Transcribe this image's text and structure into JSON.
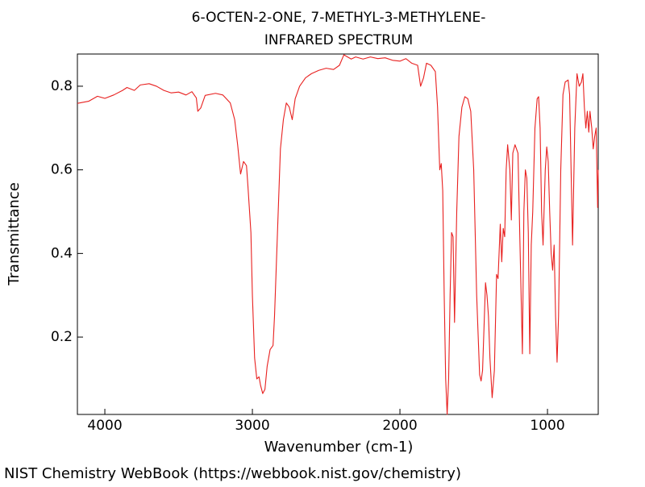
{
  "chart_data": {
    "type": "line",
    "title": "6-OCTEN-2-ONE, 7-METHYL-3-METHYLENE-",
    "subtitle": "INFRARED SPECTRUM",
    "x_label": "Wavenumber (cm-1)",
    "y_label": "Transmittance",
    "source": "NIST Chemistry WebBook (https://webbook.nist.gov/chemistry)",
    "color": "#e8201f",
    "xlim": [
      4186,
      656
    ],
    "ylim": [
      0.015,
      0.877
    ],
    "xticks": [
      4000,
      3000,
      2000,
      1000
    ],
    "yticks": [
      0.2,
      0.4,
      0.6,
      0.8
    ],
    "x": [
      4186,
      4110,
      4050,
      4000,
      3940,
      3880,
      3850,
      3800,
      3760,
      3700,
      3650,
      3600,
      3550,
      3500,
      3450,
      3410,
      3380,
      3370,
      3350,
      3320,
      3250,
      3200,
      3150,
      3120,
      3100,
      3080,
      3060,
      3040,
      3030,
      3010,
      3000,
      2985,
      2970,
      2955,
      2945,
      2930,
      2915,
      2900,
      2880,
      2860,
      2850,
      2830,
      2810,
      2790,
      2770,
      2750,
      2730,
      2710,
      2680,
      2640,
      2600,
      2550,
      2500,
      2450,
      2410,
      2380,
      2330,
      2300,
      2250,
      2200,
      2150,
      2100,
      2050,
      2000,
      1960,
      1920,
      1880,
      1860,
      1840,
      1820,
      1790,
      1760,
      1745,
      1730,
      1720,
      1710,
      1700,
      1690,
      1680,
      1670,
      1660,
      1650,
      1640,
      1630,
      1615,
      1600,
      1580,
      1560,
      1540,
      1520,
      1500,
      1480,
      1460,
      1450,
      1440,
      1420,
      1410,
      1400,
      1390,
      1375,
      1360,
      1345,
      1335,
      1320,
      1310,
      1300,
      1290,
      1280,
      1270,
      1255,
      1245,
      1235,
      1220,
      1200,
      1185,
      1170,
      1160,
      1150,
      1140,
      1130,
      1120,
      1110,
      1100,
      1085,
      1070,
      1060,
      1050,
      1040,
      1030,
      1015,
      1005,
      995,
      985,
      975,
      965,
      955,
      945,
      935,
      925,
      910,
      895,
      880,
      860,
      850,
      840,
      830,
      815,
      800,
      785,
      770,
      760,
      750,
      740,
      730,
      720,
      712,
      700,
      690,
      680,
      670,
      660,
      656
    ],
    "values": [
      0.759,
      0.764,
      0.776,
      0.771,
      0.779,
      0.79,
      0.797,
      0.79,
      0.803,
      0.806,
      0.8,
      0.79,
      0.784,
      0.786,
      0.779,
      0.787,
      0.772,
      0.74,
      0.748,
      0.778,
      0.783,
      0.779,
      0.76,
      0.72,
      0.66,
      0.59,
      0.62,
      0.61,
      0.56,
      0.45,
      0.3,
      0.15,
      0.1,
      0.105,
      0.085,
      0.065,
      0.075,
      0.13,
      0.17,
      0.18,
      0.25,
      0.45,
      0.65,
      0.72,
      0.76,
      0.75,
      0.72,
      0.77,
      0.8,
      0.82,
      0.83,
      0.838,
      0.843,
      0.84,
      0.85,
      0.875,
      0.865,
      0.87,
      0.865,
      0.87,
      0.866,
      0.868,
      0.862,
      0.86,
      0.866,
      0.855,
      0.85,
      0.8,
      0.82,
      0.855,
      0.85,
      0.835,
      0.75,
      0.6,
      0.615,
      0.55,
      0.3,
      0.1,
      0.015,
      0.1,
      0.3,
      0.45,
      0.44,
      0.235,
      0.5,
      0.68,
      0.75,
      0.775,
      0.77,
      0.74,
      0.6,
      0.3,
      0.11,
      0.095,
      0.12,
      0.33,
      0.3,
      0.25,
      0.15,
      0.055,
      0.12,
      0.35,
      0.34,
      0.47,
      0.38,
      0.46,
      0.44,
      0.6,
      0.66,
      0.6,
      0.48,
      0.64,
      0.66,
      0.64,
      0.4,
      0.16,
      0.5,
      0.6,
      0.58,
      0.45,
      0.16,
      0.42,
      0.5,
      0.7,
      0.77,
      0.775,
      0.7,
      0.5,
      0.42,
      0.6,
      0.655,
      0.62,
      0.5,
      0.4,
      0.36,
      0.42,
      0.25,
      0.14,
      0.25,
      0.6,
      0.78,
      0.81,
      0.815,
      0.78,
      0.6,
      0.42,
      0.7,
      0.83,
      0.8,
      0.81,
      0.83,
      0.75,
      0.7,
      0.74,
      0.69,
      0.74,
      0.7,
      0.65,
      0.68,
      0.7,
      0.51,
      0.6
    ]
  }
}
